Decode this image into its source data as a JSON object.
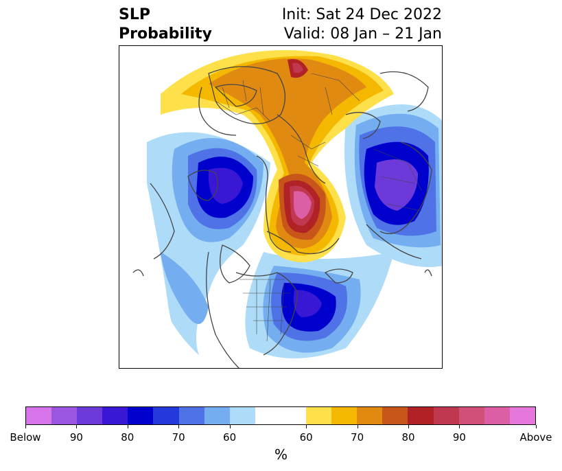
{
  "title": {
    "left_line1": "SLP",
    "left_line2": "Probability",
    "right_line1": "Init: Sat 24 Dec 2022",
    "right_line2": "Valid: 08 Jan – 21 Jan"
  },
  "map": {
    "projection": "north-polar",
    "fields": [
      "below-normal SLP probability",
      "above-normal SLP probability"
    ]
  },
  "colorbar": {
    "label": "%",
    "ticks": [
      "Below",
      "90",
      "80",
      "70",
      "60",
      "60",
      "70",
      "80",
      "90",
      "Above"
    ],
    "colors": [
      "#d774e9",
      "#9b55e0",
      "#6d3ad9",
      "#3a17d4",
      "#0000cc",
      "#2439dc",
      "#4f73e6",
      "#74aef0",
      "#aedcf8",
      "#ffffff",
      "#fde04a",
      "#f5b800",
      "#e08a12",
      "#c8561a",
      "#b02226",
      "#c0384f",
      "#d05078",
      "#dc5fa6",
      "#e678dc"
    ]
  }
}
